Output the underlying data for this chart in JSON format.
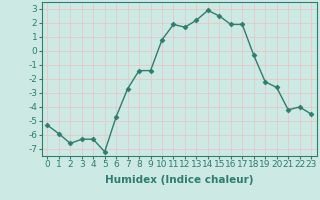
{
  "x": [
    0,
    1,
    2,
    3,
    4,
    5,
    6,
    7,
    8,
    9,
    10,
    11,
    12,
    13,
    14,
    15,
    16,
    17,
    18,
    19,
    20,
    21,
    22,
    23
  ],
  "y": [
    -5.3,
    -5.9,
    -6.6,
    -6.3,
    -6.3,
    -7.2,
    -4.7,
    -2.7,
    -1.4,
    -1.4,
    0.8,
    1.9,
    1.7,
    2.2,
    2.9,
    2.5,
    1.9,
    1.9,
    -0.3,
    -2.2,
    -2.6,
    -4.2,
    -4.0,
    -4.5
  ],
  "line_color": "#2e7d6e",
  "marker": "D",
  "marker_size": 2.5,
  "line_width": 1.0,
  "xlabel": "Humidex (Indice chaleur)",
  "xlim": [
    -0.5,
    23.5
  ],
  "ylim": [
    -7.5,
    3.5
  ],
  "yticks": [
    3,
    2,
    1,
    0,
    -1,
    -2,
    -3,
    -4,
    -5,
    -6,
    -7
  ],
  "xticks": [
    0,
    1,
    2,
    3,
    4,
    5,
    6,
    7,
    8,
    9,
    10,
    11,
    12,
    13,
    14,
    15,
    16,
    17,
    18,
    19,
    20,
    21,
    22,
    23
  ],
  "xtick_labels": [
    "0",
    "1",
    "2",
    "3",
    "4",
    "5",
    "6",
    "7",
    "8",
    "9",
    "10",
    "11",
    "12",
    "13",
    "14",
    "15",
    "16",
    "17",
    "18",
    "19",
    "20",
    "21",
    "22",
    "23"
  ],
  "bg_color": "#cce9e4",
  "grid_color": "#e8c8c8",
  "xlabel_fontsize": 7.5,
  "tick_fontsize": 6.5,
  "xlabel_fontweight": "bold"
}
